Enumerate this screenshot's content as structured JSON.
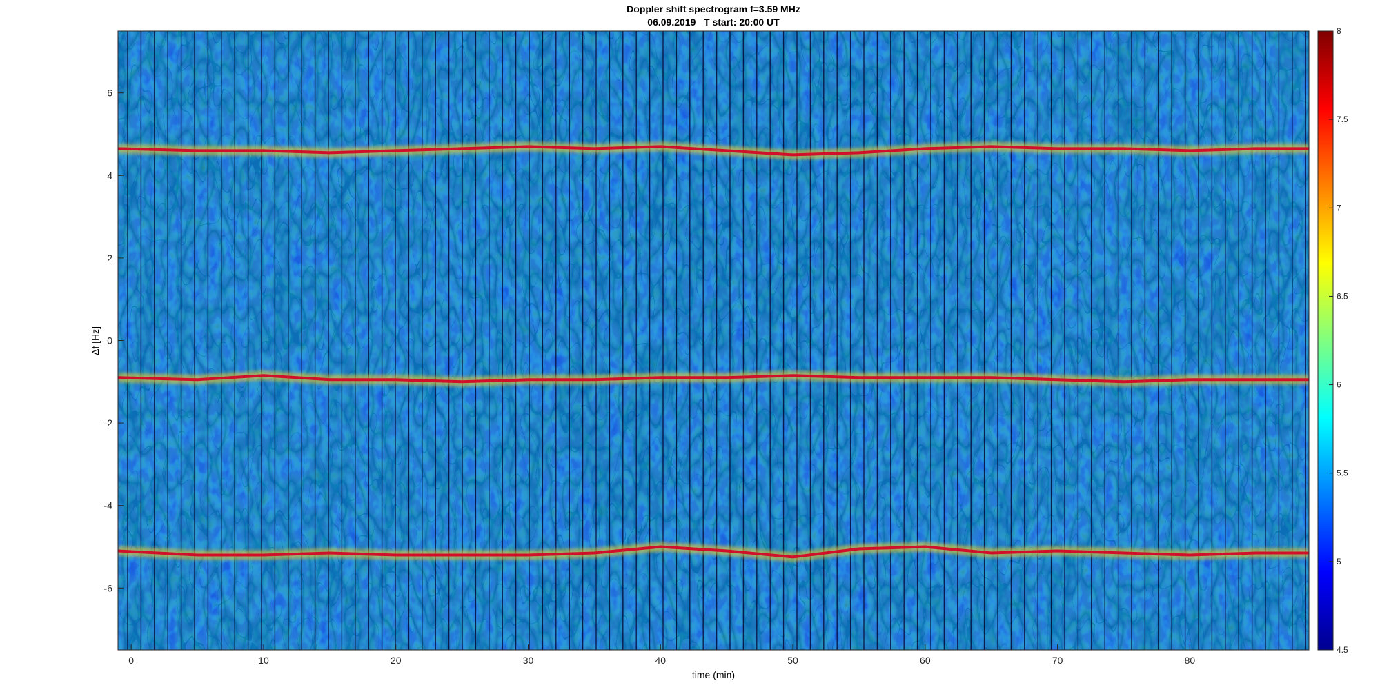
{
  "chart_data": {
    "type": "heatmap",
    "title": "Doppler shift spectrogram f=3.59 MHz",
    "subtitle": "06.09.2019   T start: 20:00 UT",
    "xlabel": "time (min)",
    "ylabel": "Δf [Hz]",
    "xlim": [
      -1,
      89
    ],
    "ylim": [
      -7.5,
      7.5
    ],
    "xticks": [
      0,
      10,
      20,
      30,
      40,
      50,
      60,
      70,
      80
    ],
    "yticks": [
      -6,
      -4,
      -2,
      0,
      2,
      4,
      6
    ],
    "colorbar": {
      "range": [
        4.5,
        8
      ],
      "ticks": [
        4.5,
        5,
        5.5,
        6,
        6.5,
        7,
        7.5,
        8
      ],
      "colormap": "jet"
    },
    "traces": [
      {
        "x": [
          -1,
          5,
          10,
          15,
          20,
          25,
          30,
          35,
          40,
          45,
          50,
          55,
          60,
          65,
          70,
          75,
          80,
          85,
          89
        ],
        "y": [
          4.65,
          4.6,
          4.6,
          4.55,
          4.6,
          4.65,
          4.7,
          4.65,
          4.7,
          4.6,
          4.5,
          4.55,
          4.65,
          4.7,
          4.65,
          4.65,
          4.6,
          4.65,
          4.65
        ]
      },
      {
        "x": [
          -1,
          5,
          10,
          15,
          20,
          25,
          30,
          35,
          40,
          45,
          50,
          55,
          60,
          65,
          70,
          75,
          80,
          85,
          89
        ],
        "y": [
          -0.9,
          -0.95,
          -0.85,
          -0.95,
          -0.95,
          -1.0,
          -0.95,
          -0.95,
          -0.9,
          -0.9,
          -0.85,
          -0.9,
          -0.9,
          -0.9,
          -0.95,
          -1.0,
          -0.95,
          -0.95,
          -0.95
        ]
      },
      {
        "x": [
          -1,
          5,
          10,
          15,
          20,
          25,
          30,
          35,
          40,
          45,
          50,
          55,
          60,
          65,
          70,
          75,
          80,
          85,
          89
        ],
        "y": [
          -5.1,
          -5.2,
          -5.2,
          -5.15,
          -5.2,
          -5.2,
          -5.2,
          -5.15,
          -5.0,
          -5.1,
          -5.25,
          -5.05,
          -5.0,
          -5.15,
          -5.1,
          -5.15,
          -5.2,
          -5.15,
          -5.15
        ]
      }
    ],
    "grid": false,
    "colors": {
      "background": "#1a5fe0",
      "trace": "#d0102a",
      "trace_halo": "#ffd21a",
      "gap_line": "#050a3a"
    }
  }
}
